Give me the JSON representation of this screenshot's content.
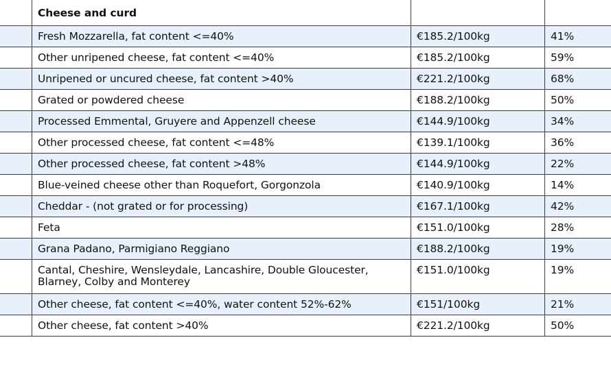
{
  "section_title": "Cheese and curd",
  "rows": [
    {
      "product": "Fresh Mozzarella, fat content <=40%",
      "rate": "€185.2/100kg",
      "share": "41%"
    },
    {
      "product": "Other unripened cheese, fat content <=40%",
      "rate": "€185.2/100kg",
      "share": "59%"
    },
    {
      "product": "Unripened or uncured cheese, fat content >40%",
      "rate": "€221.2/100kg",
      "share": "68%"
    },
    {
      "product": "Grated or powdered cheese",
      "rate": "€188.2/100kg",
      "share": "50%"
    },
    {
      "product": "Processed Emmental, Gruyere and Appenzell cheese",
      "rate": "€144.9/100kg",
      "share": "34%"
    },
    {
      "product": "Other processed cheese, fat content <=48%",
      "rate": "€139.1/100kg",
      "share": "36%"
    },
    {
      "product": "Other processed cheese, fat content >48%",
      "rate": "€144.9/100kg",
      "share": "22%"
    },
    {
      "product": "Blue-veined cheese other than Roquefort, Gorgonzola",
      "rate": "€140.9/100kg",
      "share": "14%"
    },
    {
      "product": "Cheddar - (not grated or for processing)",
      "rate": "€167.1/100kg",
      "share": "42%"
    },
    {
      "product": "Feta",
      "rate": "€151.0/100kg",
      "share": "28%"
    },
    {
      "product": "Grana Padano, Parmigiano Reggiano",
      "rate": "€188.2/100kg",
      "share": "19%"
    },
    {
      "product": "Cantal, Cheshire, Wensleydale, Lancashire, Double Gloucester, Blarney, Colby and Monterey",
      "rate": "€151.0/100kg",
      "share": "19%"
    },
    {
      "product": "Other cheese, fat content <=40%, water content 52%-62%",
      "rate": "€151/100kg",
      "share": "21%"
    },
    {
      "product": "Other cheese, fat content >40%",
      "rate": "€221.2/100kg",
      "share": "50%"
    }
  ]
}
